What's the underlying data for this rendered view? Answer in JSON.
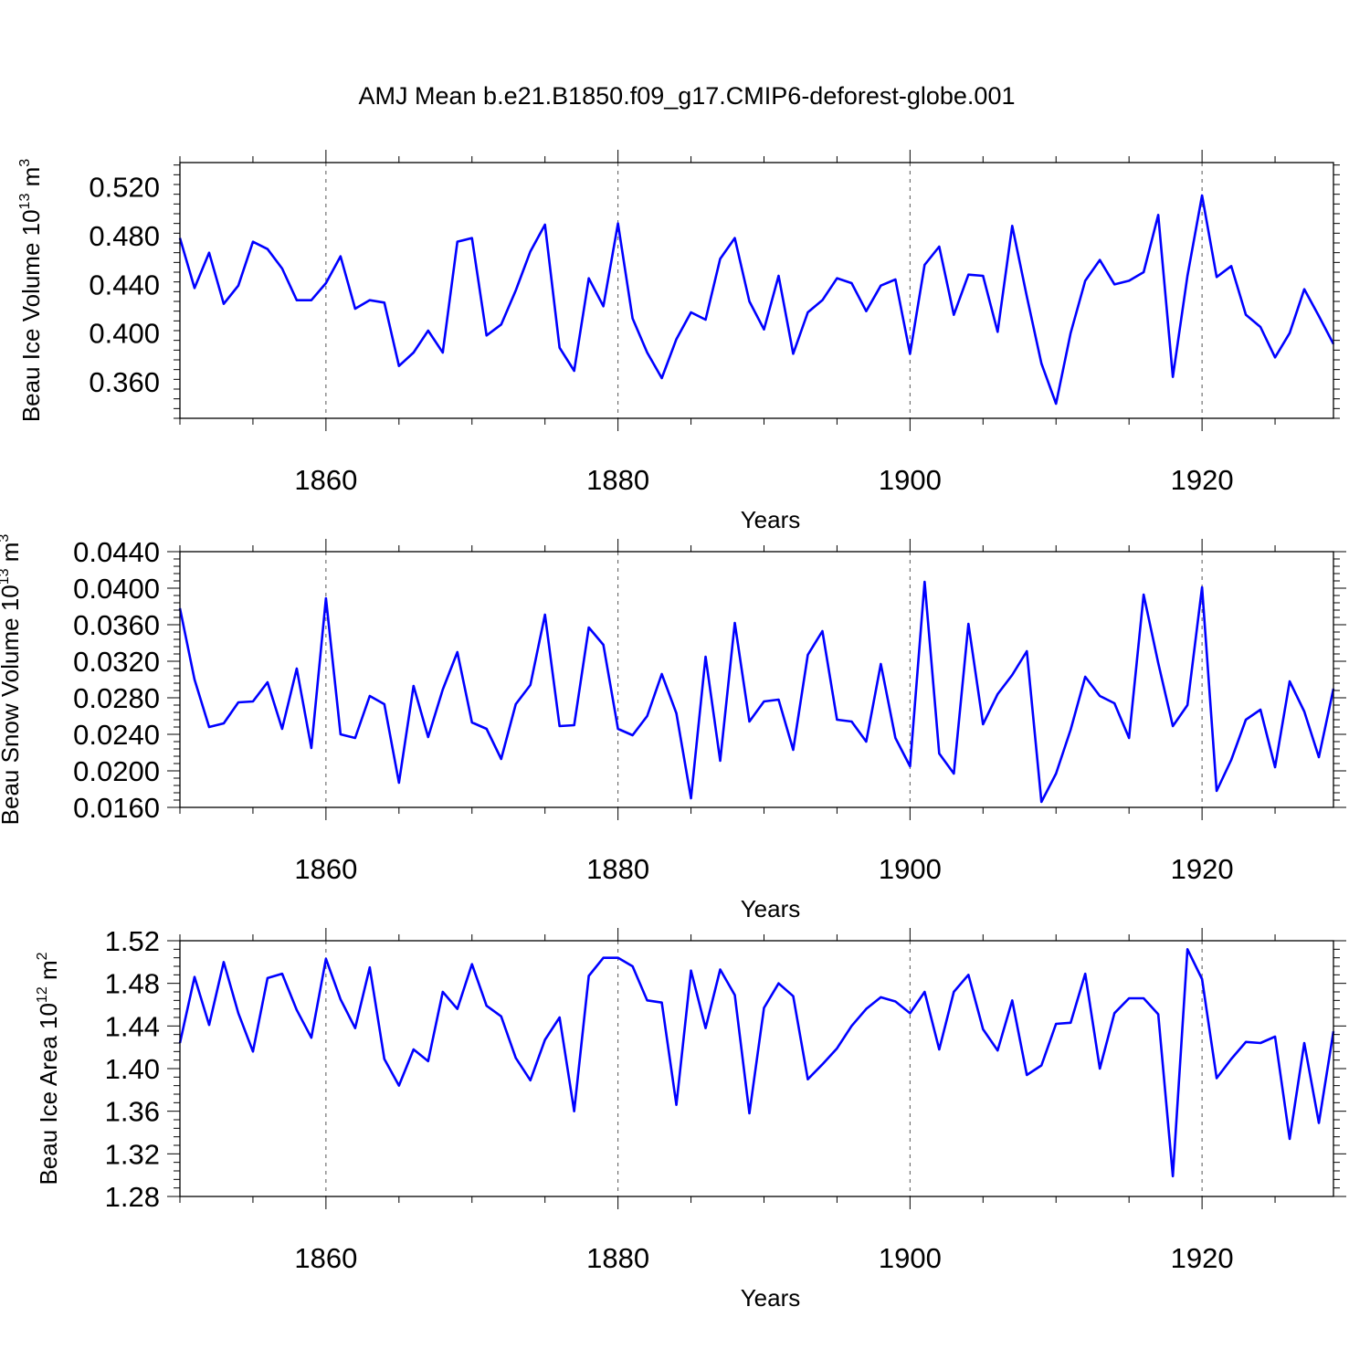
{
  "figure": {
    "title": "AMJ Mean b.e21.B1850.f09_g17.CMIP6-deforest-globe.001"
  },
  "chart_data": [
    {
      "type": "line",
      "id": "ice-volume",
      "ylabel_main": "Beau Ice Volume 10",
      "ylabel_exp1": "13",
      "ylabel_mid": " m",
      "ylabel_exp2": "3",
      "xlabel": "Years",
      "xlim": [
        1850,
        1929
      ],
      "ylim": [
        0.33,
        0.54
      ],
      "yticks": [
        "0.360",
        "0.400",
        "0.440",
        "0.480",
        "0.520"
      ],
      "xticks": [
        "1860",
        "1880",
        "1900",
        "1920"
      ],
      "grid_x": true,
      "line_color": "#0000ff",
      "start_year": 1850,
      "values": [
        0.478,
        0.437,
        0.466,
        0.424,
        0.439,
        0.475,
        0.469,
        0.453,
        0.427,
        0.427,
        0.441,
        0.463,
        0.42,
        0.427,
        0.425,
        0.373,
        0.384,
        0.402,
        0.384,
        0.475,
        0.478,
        0.398,
        0.407,
        0.435,
        0.467,
        0.489,
        0.388,
        0.369,
        0.445,
        0.422,
        0.49,
        0.412,
        0.384,
        0.363,
        0.395,
        0.417,
        0.411,
        0.461,
        0.478,
        0.426,
        0.403,
        0.447,
        0.383,
        0.417,
        0.427,
        0.445,
        0.441,
        0.418,
        0.439,
        0.444,
        0.383,
        0.456,
        0.471,
        0.415,
        0.448,
        0.447,
        0.401,
        0.488,
        0.43,
        0.375,
        0.342,
        0.4,
        0.443,
        0.46,
        0.44,
        0.443,
        0.45,
        0.497,
        0.364,
        0.447,
        0.513,
        0.446,
        0.455,
        0.415,
        0.405,
        0.38,
        0.4,
        0.436,
        0.414,
        0.391
      ]
    },
    {
      "type": "line",
      "id": "snow-volume",
      "ylabel_main": "Beau Snow Volume 10",
      "ylabel_exp1": "13",
      "ylabel_mid": " m",
      "ylabel_exp2": "3",
      "xlabel": "Years",
      "xlim": [
        1850,
        1929
      ],
      "ylim": [
        0.016,
        0.044
      ],
      "yticks": [
        "0.0160",
        "0.0200",
        "0.0240",
        "0.0280",
        "0.0320",
        "0.0360",
        "0.0400",
        "0.0440"
      ],
      "xticks": [
        "1860",
        "1880",
        "1900",
        "1920"
      ],
      "grid_x": true,
      "line_color": "#0000ff",
      "start_year": 1850,
      "values": [
        0.0378,
        0.03,
        0.0248,
        0.0252,
        0.0275,
        0.0276,
        0.0297,
        0.0246,
        0.0312,
        0.0225,
        0.0389,
        0.024,
        0.0236,
        0.0282,
        0.0273,
        0.0187,
        0.0293,
        0.0237,
        0.0289,
        0.033,
        0.0253,
        0.0246,
        0.0213,
        0.0273,
        0.0294,
        0.0371,
        0.0249,
        0.025,
        0.0357,
        0.0338,
        0.0246,
        0.0239,
        0.026,
        0.0306,
        0.0263,
        0.017,
        0.0325,
        0.0211,
        0.0362,
        0.0254,
        0.0276,
        0.0278,
        0.0223,
        0.0327,
        0.0353,
        0.0256,
        0.0254,
        0.0232,
        0.0317,
        0.0236,
        0.0205,
        0.0407,
        0.0219,
        0.0197,
        0.0361,
        0.0251,
        0.0284,
        0.0305,
        0.0331,
        0.0166,
        0.0197,
        0.0245,
        0.0303,
        0.0282,
        0.0274,
        0.0236,
        0.0393,
        0.0318,
        0.0249,
        0.0272,
        0.0401,
        0.0178,
        0.0212,
        0.0256,
        0.0267,
        0.0204,
        0.0298,
        0.0265,
        0.0215,
        0.029
      ]
    },
    {
      "type": "line",
      "id": "ice-area",
      "ylabel_main": "Beau Ice Area 10",
      "ylabel_exp1": "12",
      "ylabel_mid": " m",
      "ylabel_exp2": "2",
      "xlabel": "Years",
      "xlim": [
        1850,
        1929
      ],
      "ylim": [
        1.28,
        1.52
      ],
      "yticks": [
        "1.28",
        "1.32",
        "1.36",
        "1.40",
        "1.44",
        "1.48",
        "1.52"
      ],
      "xticks": [
        "1860",
        "1880",
        "1900",
        "1920"
      ],
      "grid_x": true,
      "line_color": "#0000ff",
      "start_year": 1850,
      "values": [
        1.424,
        1.486,
        1.441,
        1.5,
        1.452,
        1.416,
        1.485,
        1.489,
        1.455,
        1.429,
        1.503,
        1.465,
        1.438,
        1.495,
        1.409,
        1.384,
        1.418,
        1.407,
        1.472,
        1.456,
        1.498,
        1.459,
        1.449,
        1.41,
        1.389,
        1.427,
        1.448,
        1.36,
        1.487,
        1.504,
        1.504,
        1.496,
        1.464,
        1.462,
        1.366,
        1.492,
        1.438,
        1.493,
        1.469,
        1.358,
        1.457,
        1.48,
        1.468,
        1.39,
        1.404,
        1.419,
        1.44,
        1.456,
        1.467,
        1.463,
        1.452,
        1.472,
        1.418,
        1.472,
        1.488,
        1.437,
        1.417,
        1.464,
        1.394,
        1.403,
        1.442,
        1.443,
        1.489,
        1.4,
        1.452,
        1.466,
        1.466,
        1.451,
        1.299,
        1.512,
        1.484,
        1.391,
        1.409,
        1.425,
        1.424,
        1.43,
        1.334,
        1.424,
        1.349,
        1.435
      ]
    }
  ]
}
